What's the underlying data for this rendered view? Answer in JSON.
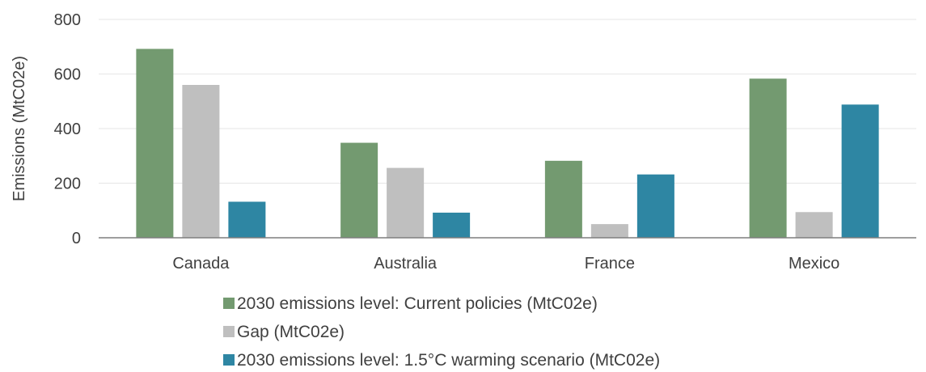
{
  "chart_data": {
    "type": "bar",
    "title": "",
    "xlabel": "",
    "ylabel": "Emissions (MtC02e)",
    "ylim": [
      0,
      800
    ],
    "yticks": [
      0,
      200,
      400,
      600,
      800
    ],
    "grid": true,
    "legend_position": "bottom",
    "categories": [
      "Canada",
      "Australia",
      "France",
      "Mexico"
    ],
    "series": [
      {
        "name": "2030 emissions level: Current policies (MtC02e)",
        "color": "#739a70",
        "values": [
          692,
          348,
          282,
          583
        ]
      },
      {
        "name": "Gap (MtC02e)",
        "color": "#bfbfbf",
        "values": [
          560,
          256,
          50,
          94
        ]
      },
      {
        "name": "2030 emissions level: 1.5°C warming scenario (MtC02e)",
        "color": "#2e86a3",
        "values": [
          132,
          92,
          232,
          488
        ]
      }
    ]
  }
}
